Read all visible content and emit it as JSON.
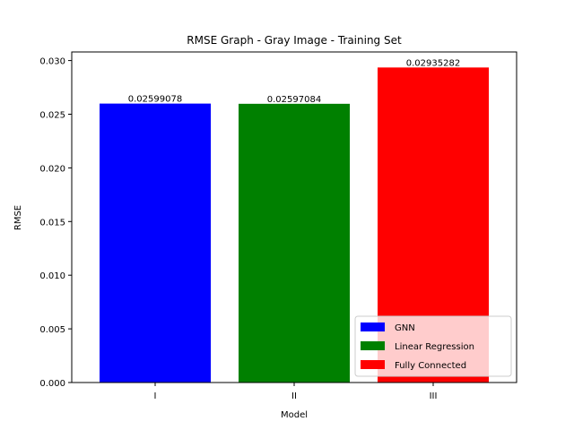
{
  "chart_data": {
    "type": "bar",
    "title": "RMSE Graph - Gray Image - Training Set",
    "xlabel": "Model",
    "ylabel": "RMSE",
    "categories": [
      "I",
      "II",
      "III"
    ],
    "values": [
      0.02599078,
      0.02597084,
      0.02935282
    ],
    "value_labels": [
      "0.02599078",
      "0.02597084",
      "0.02935282"
    ],
    "series_names": [
      "GNN",
      "Linear Regression",
      "Fully Connected"
    ],
    "colors": [
      "#0000ff",
      "#008000",
      "#ff0000"
    ],
    "ylim": [
      0,
      0.0308
    ],
    "yticks": [
      0.0,
      0.005,
      0.01,
      0.015,
      0.02,
      0.025,
      0.03
    ],
    "ytick_labels": [
      "0.000",
      "0.005",
      "0.010",
      "0.015",
      "0.020",
      "0.025",
      "0.030"
    ],
    "grid": false,
    "legend_position": "lower-right"
  }
}
